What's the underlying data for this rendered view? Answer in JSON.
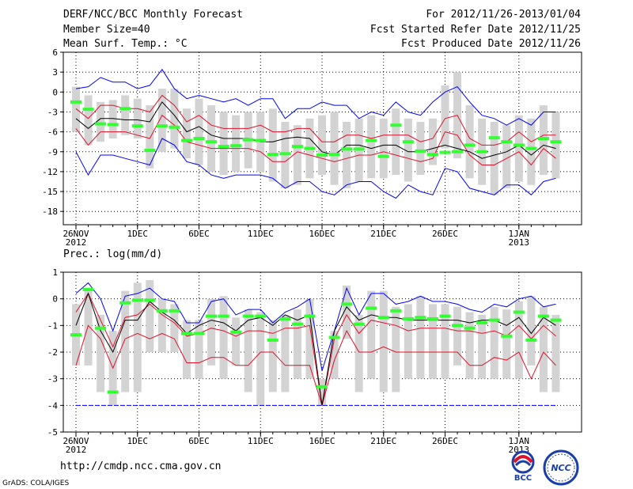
{
  "header": {
    "title": "DERF/NCC/BCC Monthly Forecast",
    "member_size": "Member Size=40",
    "variable": "Mean Surf. Temp.: °C",
    "period": "For 2012/11/26-2013/01/04",
    "started": "Fcst Started Refer Date 2012/11/25",
    "produced": "Fcst Produced Date 2012/11/26"
  },
  "footer": {
    "url": "http://cmdp.ncc.cma.gov.cn",
    "grads": "GrADS: COLA/IGES"
  },
  "logos": {
    "bcc": "BCC",
    "ncc": "NCC"
  },
  "colors": {
    "box": "#d3d3d3",
    "median": "#000000",
    "pct_red": "#e0102a",
    "extreme_blue": "#0000ff",
    "ensemble_mean": "#33ff33"
  },
  "chart_data": [
    {
      "type": "box-plume",
      "name": "temperature",
      "title": "Mean Surf. Temp.: °C",
      "x_days": 40,
      "ylim": [
        -20,
        6
      ],
      "yticks": [
        6,
        3,
        0,
        -3,
        -6,
        -9,
        -12,
        -15,
        -18
      ],
      "xtick_labels": [
        {
          "day": 0,
          "label": "26NOV",
          "sub": "2012"
        },
        {
          "day": 5,
          "label": "1DEC"
        },
        {
          "day": 10,
          "label": "6DEC"
        },
        {
          "day": 15,
          "label": "11DEC"
        },
        {
          "day": 20,
          "label": "16DEC"
        },
        {
          "day": 25,
          "label": "21DEC"
        },
        {
          "day": 30,
          "label": "26DEC"
        },
        {
          "day": 36,
          "label": "1JAN",
          "sub": "2013"
        }
      ],
      "box_top": [
        0.8,
        -0.5,
        -1.5,
        -1.2,
        -0.5,
        -1.0,
        -2.0,
        0.5,
        0.5,
        -2.5,
        -1.0,
        -2.0,
        -3.0,
        -3.5,
        -3.0,
        -3.0,
        -2.5,
        -4.5,
        -5.0,
        -4.0,
        -3.5,
        -3.0,
        -4.5,
        -4.0,
        -3.5,
        -4.0,
        -2.5,
        -4.0,
        -4.5,
        -4.0,
        1.0,
        3.0,
        -2.0,
        -4.0,
        -4.5,
        -5.0,
        -3.5,
        -4.0,
        -2.0,
        -3.0
      ],
      "box_bottom": [
        -6.0,
        -8.0,
        -7.5,
        -7.0,
        -6.5,
        -7.0,
        -11.5,
        -9.0,
        -8.5,
        -10.0,
        -11.0,
        -12.0,
        -12.5,
        -12.0,
        -11.5,
        -12.0,
        -13.5,
        -14.5,
        -14.0,
        -13.0,
        -12.5,
        -14.0,
        -14.5,
        -13.5,
        -13.0,
        -13.0,
        -12.5,
        -13.5,
        -12.5,
        -11.0,
        -8.5,
        -10.0,
        -13.0,
        -14.0,
        -15.5,
        -14.5,
        -13.5,
        -14.0,
        -12.5,
        -13.0
      ],
      "mean": [
        -1.5,
        -2.6,
        -4.8,
        -4.9,
        -2.5,
        -5.1,
        -8.8,
        -5.1,
        -5.3,
        -7.3,
        -7.0,
        -7.5,
        -8.2,
        -8.1,
        -7.2,
        -7.3,
        -9.4,
        -9.3,
        -8.2,
        -8.5,
        -9.5,
        -9.4,
        -8.6,
        -8.6,
        -7.3,
        -9.7,
        -5.0,
        -7.5,
        -8.9,
        -9.4,
        -9.1,
        -9.0,
        -8.0,
        -9.0,
        -6.9,
        -7.5,
        -8.0,
        -8.5,
        -7.0,
        -7.5
      ],
      "median": [
        -4.0,
        -5.5,
        -4.0,
        -4.0,
        -4.2,
        -4.2,
        -4.5,
        -1.5,
        -3.5,
        -6.0,
        -5.2,
        -6.5,
        -7.0,
        -7.0,
        -7.0,
        -7.5,
        -7.5,
        -7.0,
        -6.8,
        -7.0,
        -9.0,
        -9.5,
        -8.0,
        -8.0,
        -8.5,
        -8.0,
        -8.0,
        -9.0,
        -9.0,
        -8.5,
        -8.0,
        -8.5,
        -9.0,
        -10.0,
        -9.5,
        -9.0,
        -8.0,
        -9.5,
        -8.0,
        -8.5
      ],
      "p_upper": [
        -2.5,
        -4.0,
        -2.0,
        -2.0,
        -2.5,
        -2.5,
        -3.0,
        -0.5,
        -2.0,
        -4.5,
        -3.5,
        -5.0,
        -5.5,
        -5.5,
        -5.5,
        -5.0,
        -6.0,
        -6.0,
        -5.5,
        -5.5,
        -7.5,
        -7.5,
        -6.5,
        -6.5,
        -7.0,
        -6.5,
        -6.5,
        -6.5,
        -7.5,
        -7.0,
        -4.0,
        -3.5,
        -7.0,
        -8.0,
        -8.0,
        -7.5,
        -6.0,
        -7.5,
        -6.5,
        -6.5
      ],
      "p_lower": [
        -5.5,
        -8.0,
        -6.0,
        -6.0,
        -6.0,
        -6.5,
        -7.0,
        -3.5,
        -5.0,
        -7.5,
        -8.0,
        -8.5,
        -8.5,
        -8.5,
        -8.5,
        -9.0,
        -10.5,
        -10.5,
        -9.0,
        -9.5,
        -10.0,
        -10.5,
        -10.0,
        -9.5,
        -9.5,
        -9.0,
        -9.5,
        -10.0,
        -10.5,
        -10.0,
        -6.0,
        -6.5,
        -9.5,
        -11.0,
        -11.0,
        -10.0,
        -9.0,
        -11.0,
        -8.5,
        -10.0
      ],
      "p_max": [
        0.5,
        0.8,
        2.2,
        1.5,
        1.5,
        0.5,
        1.0,
        3.4,
        0.5,
        -1.0,
        -0.5,
        -1.0,
        -1.5,
        -1.0,
        -2.0,
        -1.0,
        -1.0,
        -4.0,
        -2.5,
        -2.5,
        -1.5,
        -2.0,
        -2.0,
        -4.0,
        -3.0,
        -3.5,
        -1.5,
        -3.0,
        -3.5,
        -1.5,
        0.0,
        0.8,
        -1.5,
        -3.5,
        -4.0,
        -5.0,
        -4.0,
        -5.0,
        -3.0,
        -3.0
      ],
      "p_min": [
        -9.0,
        -12.5,
        -9.5,
        -9.5,
        -10.0,
        -10.5,
        -11.0,
        -7.0,
        -8.0,
        -10.5,
        -11.0,
        -12.5,
        -13.0,
        -12.5,
        -12.5,
        -12.5,
        -13.0,
        -14.5,
        -13.5,
        -13.5,
        -15.0,
        -15.5,
        -14.0,
        -13.5,
        -13.5,
        -15.0,
        -16.0,
        -14.0,
        -15.0,
        -15.5,
        -11.5,
        -12.0,
        -14.5,
        -15.0,
        -15.5,
        -14.0,
        -14.0,
        -15.5,
        -13.5,
        -13.0
      ]
    },
    {
      "type": "box-plume",
      "name": "precipitation",
      "title": "Prec.: log(mm/d)",
      "x_days": 40,
      "ylim": [
        -5,
        1
      ],
      "yticks": [
        1,
        0,
        -1,
        -2,
        -3,
        -4,
        -5
      ],
      "xtick_labels": [
        {
          "day": 0,
          "label": "26NOV",
          "sub": "2012"
        },
        {
          "day": 5,
          "label": "1DEC"
        },
        {
          "day": 10,
          "label": "6DEC"
        },
        {
          "day": 15,
          "label": "11DEC"
        },
        {
          "day": 20,
          "label": "16DEC"
        },
        {
          "day": 25,
          "label": "21DEC"
        },
        {
          "day": 30,
          "label": "26DEC"
        },
        {
          "day": 36,
          "label": "1JAN",
          "sub": "2013"
        }
      ],
      "box_top": [
        -0.2,
        0.4,
        -0.6,
        -1.2,
        0.3,
        0.6,
        0.7,
        0.0,
        -0.2,
        -0.8,
        -0.8,
        0.0,
        0.1,
        -0.7,
        -0.4,
        -0.5,
        -0.8,
        -0.6,
        -0.4,
        0.0,
        -3.0,
        -1.2,
        0.5,
        -0.6,
        0.3,
        0.3,
        -0.3,
        -0.2,
        0.1,
        -0.2,
        -0.2,
        -0.3,
        -0.5,
        -0.6,
        -0.3,
        -0.4,
        -0.1,
        0.1,
        -0.3,
        -0.6
      ],
      "box_bottom": [
        -2.5,
        -2.5,
        -3.5,
        -4.0,
        -3.5,
        -3.5,
        -2.0,
        -2.0,
        -2.0,
        -3.0,
        -3.0,
        -2.5,
        -3.0,
        -2.5,
        -3.5,
        -4.0,
        -3.5,
        -3.5,
        -3.0,
        -3.0,
        -4.0,
        -3.0,
        -1.5,
        -3.5,
        -3.0,
        -3.5,
        -3.5,
        -3.0,
        -3.0,
        -3.0,
        -3.0,
        -2.5,
        -3.0,
        -3.0,
        -3.0,
        -3.0,
        -3.0,
        -2.5,
        -3.5,
        -3.5
      ],
      "mean": [
        -1.35,
        0.35,
        -1.1,
        -3.5,
        -0.15,
        -0.05,
        -0.05,
        -0.45,
        -0.45,
        -1.3,
        -1.3,
        -0.65,
        -0.65,
        -1.25,
        -0.65,
        -0.65,
        -1.55,
        -0.75,
        -0.95,
        -0.65,
        -3.3,
        -1.45,
        -0.2,
        -0.95,
        -0.35,
        -0.7,
        -0.45,
        -0.75,
        -0.7,
        -0.75,
        -0.65,
        -1.0,
        -1.1,
        -0.9,
        -0.8,
        -1.4,
        -0.5,
        -1.55,
        -0.65,
        -0.8
      ],
      "median": [
        -1.0,
        0.2,
        -1.2,
        -2.0,
        -0.8,
        -0.8,
        -0.1,
        -0.5,
        -0.8,
        -1.3,
        -1.0,
        -0.8,
        -0.9,
        -1.2,
        -0.8,
        -0.7,
        -1.0,
        -0.6,
        -0.8,
        -0.6,
        -4.0,
        -1.2,
        -0.3,
        -0.8,
        -0.6,
        -0.7,
        -0.7,
        -0.8,
        -0.8,
        -0.8,
        -0.8,
        -0.8,
        -0.9,
        -0.8,
        -0.8,
        -1.0,
        -0.7,
        -1.3,
        -0.7,
        -1.0
      ],
      "p_upper": [
        -0.5,
        0.2,
        -0.8,
        -1.8,
        -0.7,
        -0.6,
        -0.2,
        -0.6,
        -0.9,
        -1.4,
        -1.3,
        -1.1,
        -1.2,
        -1.4,
        -1.2,
        -1.2,
        -1.3,
        -1.1,
        -1.1,
        -1.0,
        -4.0,
        -1.5,
        -0.6,
        -1.3,
        -0.8,
        -0.9,
        -1.0,
        -1.2,
        -1.1,
        -1.1,
        -1.1,
        -1.2,
        -1.2,
        -1.3,
        -1.2,
        -1.4,
        -1.0,
        -1.5,
        -1.0,
        -1.4
      ],
      "p_lower": [
        -2.5,
        -1.0,
        -1.5,
        -2.6,
        -1.5,
        -1.3,
        -1.5,
        -1.3,
        -1.5,
        -2.4,
        -2.4,
        -2.2,
        -2.2,
        -2.5,
        -2.5,
        -2.0,
        -2.0,
        -2.5,
        -2.5,
        -2.5,
        -4.0,
        -2.3,
        -1.2,
        -2.0,
        -2.0,
        -1.8,
        -2.0,
        -2.0,
        -2.0,
        -2.0,
        -2.0,
        -2.0,
        -2.5,
        -2.5,
        -2.2,
        -2.3,
        -2.0,
        -3.0,
        -2.0,
        -2.5
      ],
      "p_max": [
        0.2,
        0.6,
        0.0,
        -1.2,
        0.1,
        0.2,
        0.4,
        0.0,
        -0.1,
        -0.9,
        -0.9,
        -0.1,
        0.0,
        -0.6,
        -0.4,
        -0.4,
        -0.9,
        -0.5,
        -0.3,
        0.0,
        -2.7,
        -1.2,
        0.4,
        -0.6,
        0.2,
        0.2,
        -0.2,
        -0.1,
        0.1,
        -0.1,
        -0.1,
        -0.2,
        -0.4,
        -0.5,
        -0.2,
        -0.3,
        0.0,
        0.1,
        -0.3,
        -0.2
      ],
      "p_min": [
        -4.0,
        -4.0,
        -4.0,
        -4.0,
        -4.0,
        -4.0,
        -4.0,
        -4.0,
        -4.0,
        -4.0,
        -4.0,
        -4.0,
        -4.0,
        -4.0,
        -4.0,
        -4.0,
        -4.0,
        -4.0,
        -4.0,
        -4.0,
        -4.0,
        -4.0,
        -4.0,
        -4.0,
        -4.0,
        -4.0,
        -4.0,
        -4.0,
        -4.0,
        -4.0,
        -4.0,
        -4.0,
        -4.0,
        -4.0,
        -4.0,
        -4.0,
        -4.0,
        -4.0,
        -4.0,
        -4.0
      ]
    }
  ]
}
